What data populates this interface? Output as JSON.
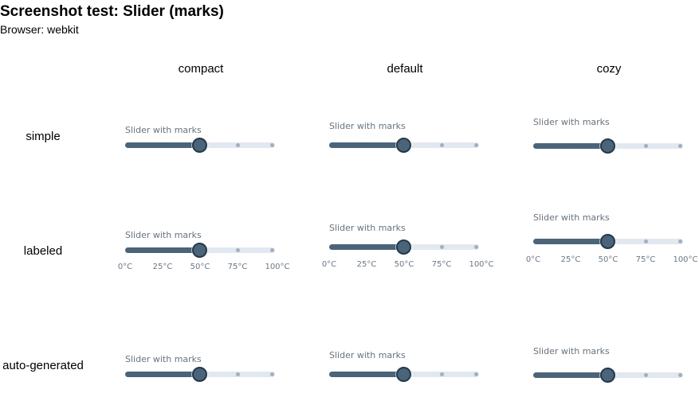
{
  "page": {
    "title": "Screenshot test: Slider (marks)",
    "browser": "Browser: webkit"
  },
  "columns": [
    {
      "key": "compact",
      "label": "compact"
    },
    {
      "key": "default",
      "label": "default"
    },
    {
      "key": "cozy",
      "label": "cozy"
    }
  ],
  "rows": [
    {
      "key": "simple",
      "label": "simple",
      "show_mark_labels": false
    },
    {
      "key": "labeled",
      "label": "labeled",
      "show_mark_labels": true
    },
    {
      "key": "auto-generated",
      "label": "auto-generated",
      "show_mark_labels": false
    }
  ],
  "slider": {
    "label": "Slider with marks",
    "min": 0,
    "max": 100,
    "value": 50,
    "marks": [
      {
        "value": 0,
        "label": "0°C"
      },
      {
        "value": 25,
        "label": "25°C"
      },
      {
        "value": 50,
        "label": "50°C"
      },
      {
        "value": 75,
        "label": "75°C"
      },
      {
        "value": 100,
        "label": "100°C"
      }
    ]
  },
  "colors": {
    "track": "#4b6479",
    "thumb_border": "#24394b",
    "rail": "#e2e8ef",
    "mark_inactive": "#9fb0c1"
  }
}
